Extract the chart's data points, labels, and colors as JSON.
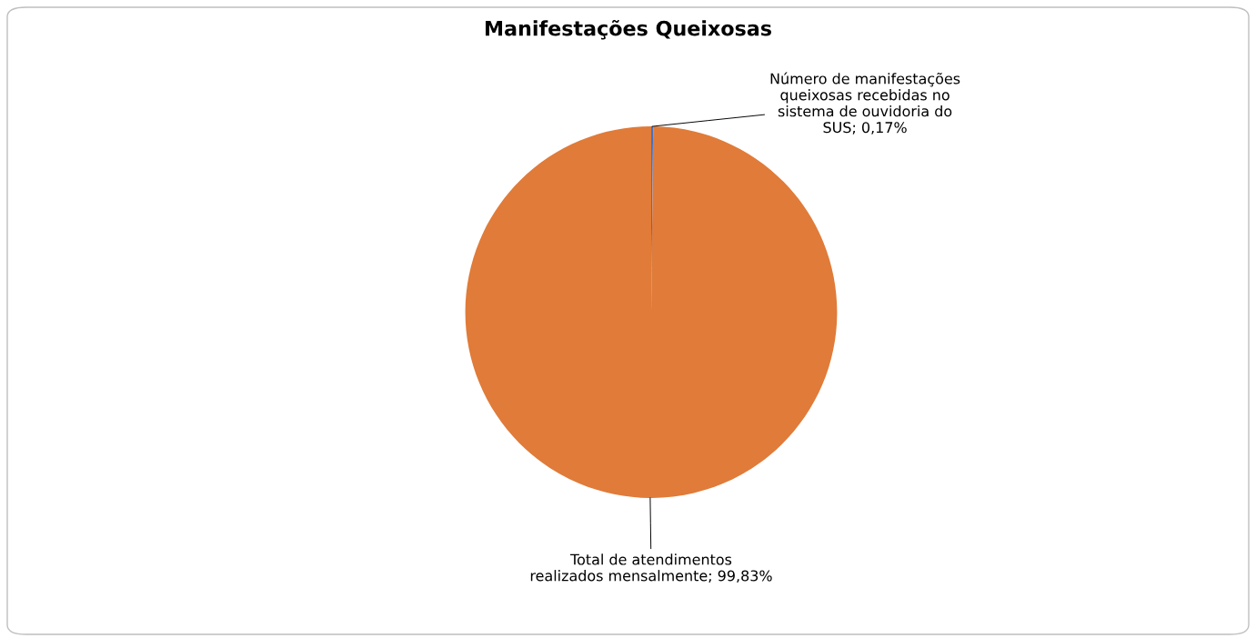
{
  "chart_data": {
    "type": "pie",
    "title": "Manifestações Queixosas",
    "categories": [
      "Número de manifestações queixosas recebidas no sistema de ouvidoria do SUS",
      "Total de atendimentos realizados mensalmente"
    ],
    "values": [
      0.17,
      99.83
    ],
    "colors": [
      "#4472c4",
      "#e07b39"
    ],
    "value_labels": [
      "0,17%",
      "99,83%"
    ],
    "legend": false
  }
}
